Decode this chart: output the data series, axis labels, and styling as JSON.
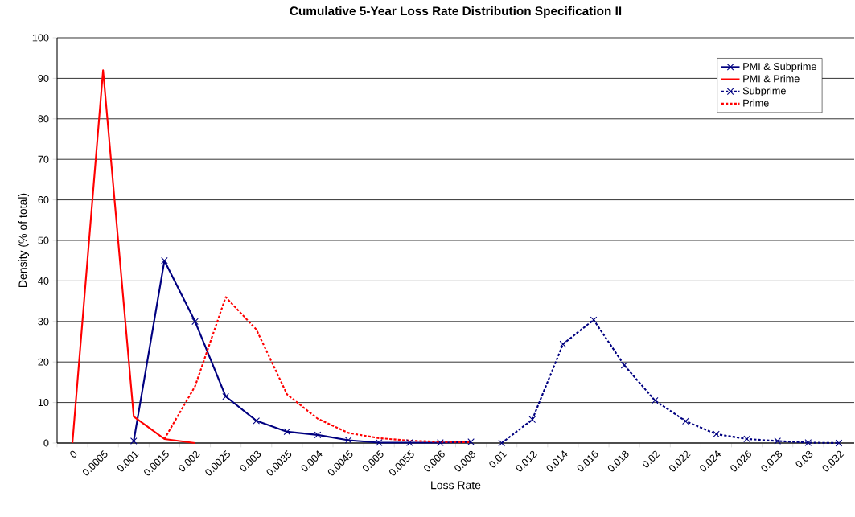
{
  "chart_data": {
    "type": "line",
    "title": "Cumulative 5-Year Loss Rate Distribution Specification II",
    "xlabel": "Loss Rate",
    "ylabel": "Density (% of total)",
    "categories": [
      "0",
      "0.0005",
      "0.001",
      "0.0015",
      "0.002",
      "0.0025",
      "0.003",
      "0.0035",
      "0.004",
      "0.0045",
      "0.005",
      "0.0055",
      "0.006",
      "0.008",
      "0.01",
      "0.012",
      "0.014",
      "0.016",
      "0.018",
      "0.02",
      "0.022",
      "0.024",
      "0.026",
      "0.028",
      "0.03",
      "0.032"
    ],
    "series": [
      {
        "name": "PMI & Subprime",
        "color": "#000080",
        "marker": "cross",
        "line_style": "solid",
        "values": [
          null,
          null,
          0.5,
          45,
          30,
          11.5,
          5.5,
          2.8,
          2,
          0.7,
          0.1,
          0.1,
          0.1,
          0.3,
          null,
          null,
          null,
          null,
          null,
          null,
          null,
          null,
          null,
          null,
          null,
          null
        ]
      },
      {
        "name": "PMI & Prime",
        "color": "#ff0000",
        "marker": "none",
        "line_style": "solid",
        "values": [
          0,
          92,
          6.5,
          1,
          0,
          null,
          null,
          null,
          null,
          null,
          null,
          null,
          null,
          null,
          null,
          null,
          null,
          null,
          null,
          null,
          null,
          null,
          null,
          null,
          null,
          null
        ]
      },
      {
        "name": "Subprime",
        "color": "#000080",
        "marker": "cross",
        "line_style": "dashed",
        "values": [
          null,
          null,
          null,
          null,
          null,
          null,
          null,
          null,
          null,
          null,
          null,
          null,
          null,
          null,
          0,
          5.8,
          24.4,
          30.4,
          19.2,
          10.5,
          5.4,
          2.2,
          1,
          0.5,
          0.1,
          0
        ]
      },
      {
        "name": "Prime",
        "color": "#ff0000",
        "marker": "none",
        "line_style": "dashed",
        "values": [
          null,
          null,
          null,
          1,
          14,
          36,
          28,
          12,
          6,
          2.5,
          1.2,
          0.6,
          0.3,
          0.2,
          null,
          null,
          null,
          null,
          null,
          null,
          null,
          null,
          null,
          null,
          null,
          null
        ]
      }
    ],
    "ylim": [
      0,
      100
    ],
    "yticks": [
      0,
      10,
      20,
      30,
      40,
      50,
      60,
      70,
      80,
      90,
      100
    ],
    "grid": "y",
    "legend": "top right"
  }
}
